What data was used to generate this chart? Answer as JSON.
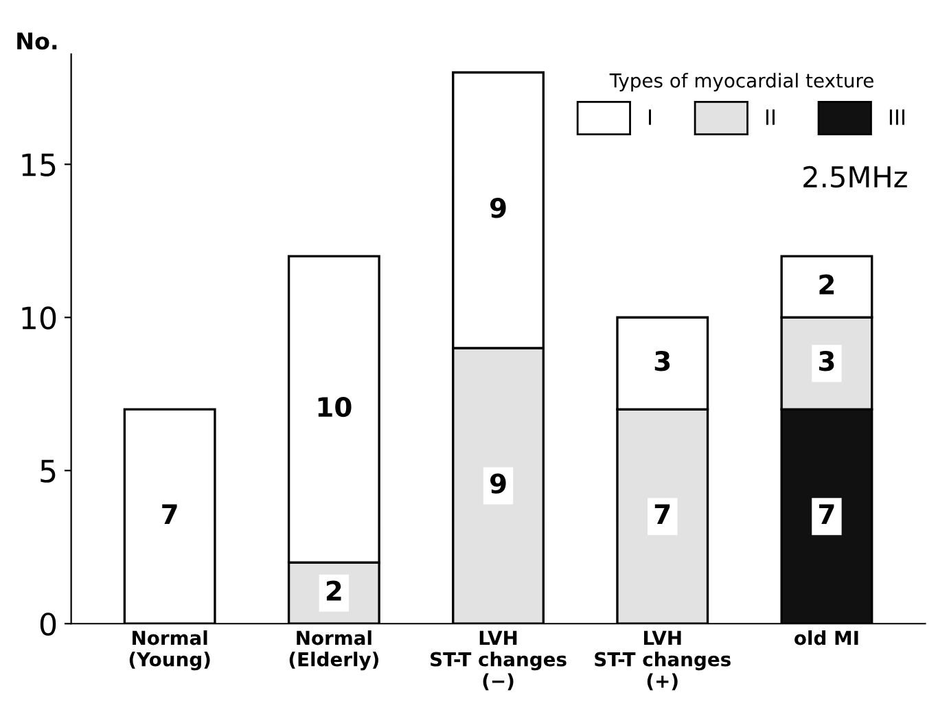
{
  "chart_data": {
    "type": "bar",
    "stacked": true,
    "ylabel": "No.",
    "legend_title": "Types of myocardial texture",
    "legend": "top right",
    "categories": [
      "Normal\n(Young)",
      "Normal\n(Elderly)",
      "LVH\nST-T changes\n(−)",
      "LVH\nST-T changes\n(+)",
      "old MI"
    ],
    "series": [
      {
        "name": "III",
        "color": "#111111",
        "values": [
          null,
          null,
          null,
          null,
          7
        ]
      },
      {
        "name": "II",
        "color": "#e2e2e2",
        "values": [
          null,
          2,
          9,
          7,
          3
        ]
      },
      {
        "name": "I",
        "color": "#ffffff",
        "values": [
          7,
          10,
          9,
          3,
          2
        ]
      }
    ],
    "data_labels": true,
    "ylim": [
      0,
      18.6
    ],
    "yticks": [
      0,
      5,
      10,
      15
    ],
    "grid": false,
    "annotations": [
      "2.5MHz"
    ]
  }
}
